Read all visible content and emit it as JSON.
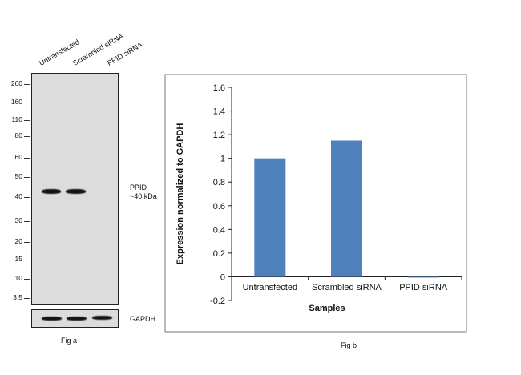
{
  "fig_a": {
    "lanes": [
      "Untransfected",
      "Scrambled siRNA",
      "PPID siRNA"
    ],
    "mw_markers": [
      "260",
      "160",
      "110",
      "80",
      "60",
      "50",
      "40",
      "30",
      "20",
      "15",
      "10",
      "3.5"
    ],
    "target_label": "PPID",
    "target_size": "~40 kDa",
    "control_label": "GAPDH",
    "caption": "Fig a"
  },
  "fig_b": {
    "caption": "Fig b"
  },
  "chart_data": {
    "type": "bar",
    "title": "",
    "categories": [
      "Untransfected",
      "Scrambled siRNA",
      "PPID siRNA"
    ],
    "values": [
      1.0,
      1.15,
      -0.005
    ],
    "xlabel": "Samples",
    "ylabel": "Expression normalized to GAPDH",
    "ylim": [
      -0.2,
      1.6
    ],
    "yticks": [
      "-0.2",
      "0",
      "0.2",
      "0.4",
      "0.6",
      "0.8",
      "1",
      "1.2",
      "1.4",
      "1.6"
    ],
    "bar_color": "#4f81bd",
    "grid": false,
    "legend": "none"
  }
}
